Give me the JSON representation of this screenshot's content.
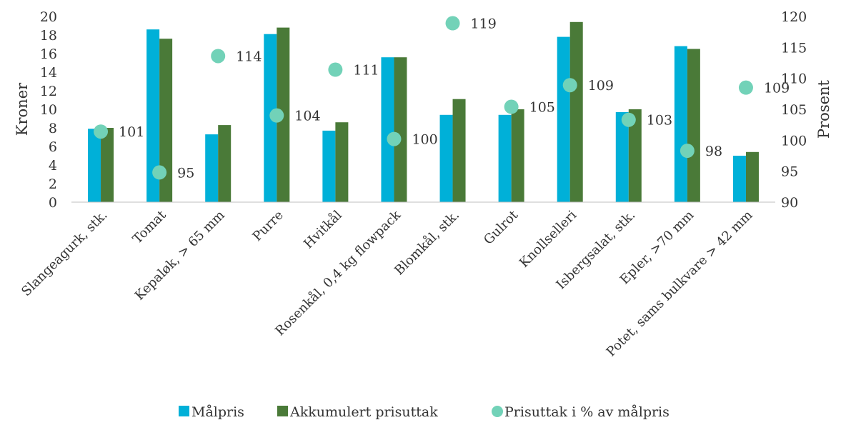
{
  "chart_data": {
    "type": "bar",
    "categories": [
      "Slangeagurk, stk.",
      "Tomat",
      "Kepaløk, > 65 mm",
      "Purre",
      "Hvitkål",
      "Rosenkål, 0,4 kg flowpack",
      "Blomkål, stk.",
      "Gulrot",
      "Knollselleri",
      "Isbergsalat, stk.",
      "Epler, >70 mm",
      "Potet, sams bulkvare > 42 mm"
    ],
    "series": [
      {
        "name": "Målpris",
        "kind": "bar",
        "axis": "left",
        "color": "#00B0D8",
        "values": [
          7.9,
          18.6,
          7.3,
          18.1,
          7.7,
          15.6,
          9.4,
          9.4,
          17.8,
          9.7,
          16.8,
          5.0
        ]
      },
      {
        "name": "Akkumulert prisuttak",
        "kind": "bar",
        "axis": "left",
        "color": "#4A7A38",
        "values": [
          8.0,
          17.6,
          8.3,
          18.8,
          8.6,
          15.6,
          11.1,
          10.0,
          19.4,
          10.0,
          16.5,
          5.4
        ]
      },
      {
        "name": "Prisuttak i % av målpris",
        "kind": "scatter",
        "axis": "right",
        "color": "#72D2B8",
        "values": [
          101.4,
          94.8,
          113.6,
          104.0,
          111.4,
          100.2,
          118.9,
          105.4,
          108.9,
          103.3,
          98.3,
          108.5
        ],
        "labels": [
          "101",
          "95",
          "114",
          "104",
          "111",
          "100",
          "119",
          "105",
          "109",
          "103",
          "98",
          "109"
        ]
      }
    ],
    "ylabel": "Kroner",
    "y2label": "Prosent",
    "ylim": [
      0,
      20
    ],
    "y2lim": [
      90,
      120
    ],
    "yticks": [
      "0",
      "2",
      "4",
      "6",
      "8",
      "10",
      "12",
      "14",
      "16",
      "18",
      "20"
    ],
    "y2ticks": [
      "90",
      "95",
      "100",
      "105",
      "110",
      "115",
      "120"
    ],
    "grid": false,
    "legend_position": "bottom"
  }
}
